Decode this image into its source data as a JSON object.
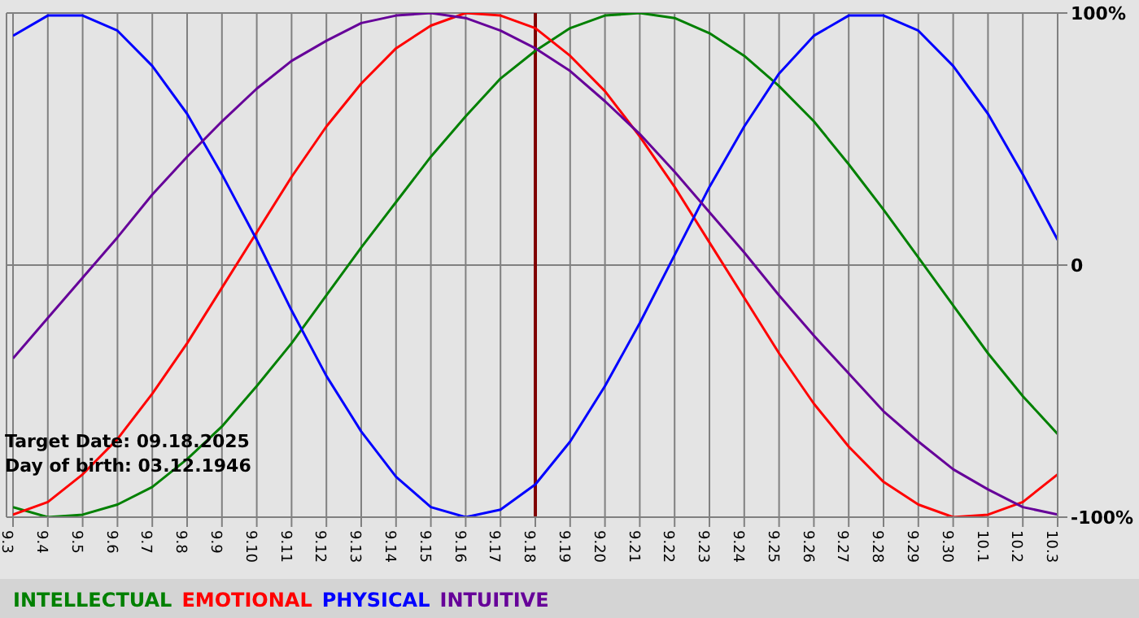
{
  "chart_data": {
    "type": "line",
    "categories": [
      "9.3",
      "9.4",
      "9.5",
      "9.6",
      "9.7",
      "9.8",
      "9.9",
      "9.10",
      "9.11",
      "9.12",
      "9.13",
      "9.14",
      "9.15",
      "9.16",
      "9.17",
      "9.18",
      "9.19",
      "9.20",
      "9.21",
      "9.22",
      "9.23",
      "9.24",
      "9.25",
      "9.26",
      "9.27",
      "9.28",
      "9.29",
      "9.30",
      "10.1",
      "10.2",
      "10.3"
    ],
    "series": [
      {
        "name": "INTELLECTUAL",
        "color": "#008000",
        "values": [
          -96,
          -100,
          -99,
          -95,
          -88,
          -77,
          -64,
          -48,
          -31,
          -12,
          7,
          25,
          43,
          59,
          74,
          85,
          94,
          99,
          100,
          98,
          92,
          83,
          71,
          57,
          40,
          22,
          3,
          -16,
          -35,
          -52,
          -67
        ]
      },
      {
        "name": "EMOTIONAL",
        "color": "#ff0000",
        "values": [
          -99,
          -94,
          -83,
          -69,
          -51,
          -31,
          -9,
          13,
          35,
          55,
          72,
          86,
          95,
          100,
          99,
          94,
          83,
          69,
          51,
          31,
          9,
          -13,
          -35,
          -55,
          -72,
          -86,
          -95,
          -100,
          -99,
          -94,
          -83
        ]
      },
      {
        "name": "PHYSICAL",
        "color": "#0000ff",
        "values": [
          91,
          99,
          99,
          93,
          79,
          60,
          36,
          10,
          -18,
          -44,
          -66,
          -84,
          -96,
          -100,
          -97,
          -87,
          -70,
          -48,
          -23,
          4,
          31,
          55,
          76,
          91,
          99,
          99,
          93,
          79,
          60,
          36,
          10
        ]
      },
      {
        "name": "INTUITIVE",
        "color": "#660099",
        "values": [
          -37,
          -21,
          -5,
          11,
          28,
          43,
          57,
          70,
          81,
          89,
          96,
          99,
          100,
          98,
          93,
          86,
          77,
          65,
          52,
          37,
          21,
          5,
          -12,
          -28,
          -43,
          -58,
          -70,
          -81,
          -89,
          -96,
          -99
        ]
      }
    ],
    "ylim": [
      -100,
      100
    ],
    "yticks": [
      {
        "value": 100,
        "label": "100%"
      },
      0,
      {
        "value": -100,
        "label": "-100%"
      }
    ],
    "ref_lines": [
      {
        "axis": "x",
        "value": "9.18",
        "color": "#800000"
      }
    ],
    "annotations": [
      "Target Date: 09.18.2025",
      "Day of birth: 03.12.1946"
    ],
    "grid": true,
    "legend": "bottom",
    "marker": "none",
    "line_style": "solid"
  }
}
